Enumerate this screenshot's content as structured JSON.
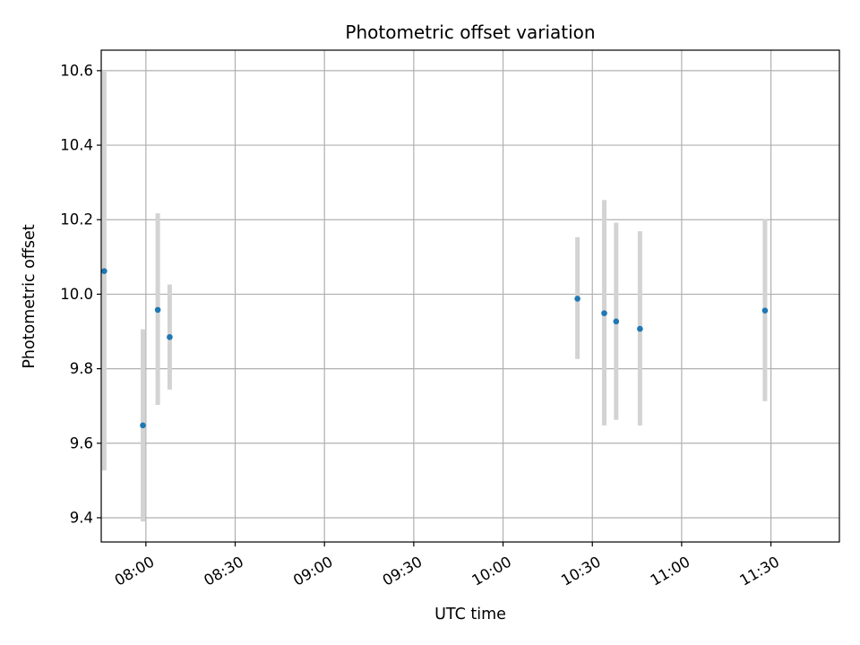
{
  "chart_data": {
    "type": "scatter",
    "title": "Photometric offset variation",
    "xlabel": "UTC time",
    "ylabel": "Photometric offset",
    "x_ticks": [
      "08:00",
      "08:30",
      "09:00",
      "09:30",
      "10:00",
      "10:30",
      "11:00",
      "11:30"
    ],
    "y_ticks": [
      "9.4",
      "9.6",
      "9.8",
      "10.0",
      "10.2",
      "10.4",
      "10.6"
    ],
    "xlim": [
      "07:45",
      "11:53"
    ],
    "ylim": [
      9.335,
      10.655
    ],
    "grid": true,
    "marker_color": "#1f77b4",
    "errorbar_color": "#d3d3d3",
    "series": [
      {
        "points": [
          {
            "x": "07:46",
            "y": 10.062,
            "ymin": 9.527,
            "ymax": 10.597
          },
          {
            "x": "07:59",
            "y": 9.648,
            "ymin": 9.39,
            "ymax": 9.906
          },
          {
            "x": "08:04",
            "y": 9.958,
            "ymin": 9.703,
            "ymax": 10.217
          },
          {
            "x": "08:08",
            "y": 9.885,
            "ymin": 9.744,
            "ymax": 10.026
          },
          {
            "x": "10:25",
            "y": 9.988,
            "ymin": 9.826,
            "ymax": 10.153
          },
          {
            "x": "10:34",
            "y": 9.949,
            "ymin": 9.648,
            "ymax": 10.253
          },
          {
            "x": "10:38",
            "y": 9.927,
            "ymin": 9.663,
            "ymax": 10.192
          },
          {
            "x": "10:46",
            "y": 9.907,
            "ymin": 9.648,
            "ymax": 10.169
          },
          {
            "x": "11:28",
            "y": 9.956,
            "ymin": 9.713,
            "ymax": 10.202
          }
        ]
      }
    ]
  }
}
